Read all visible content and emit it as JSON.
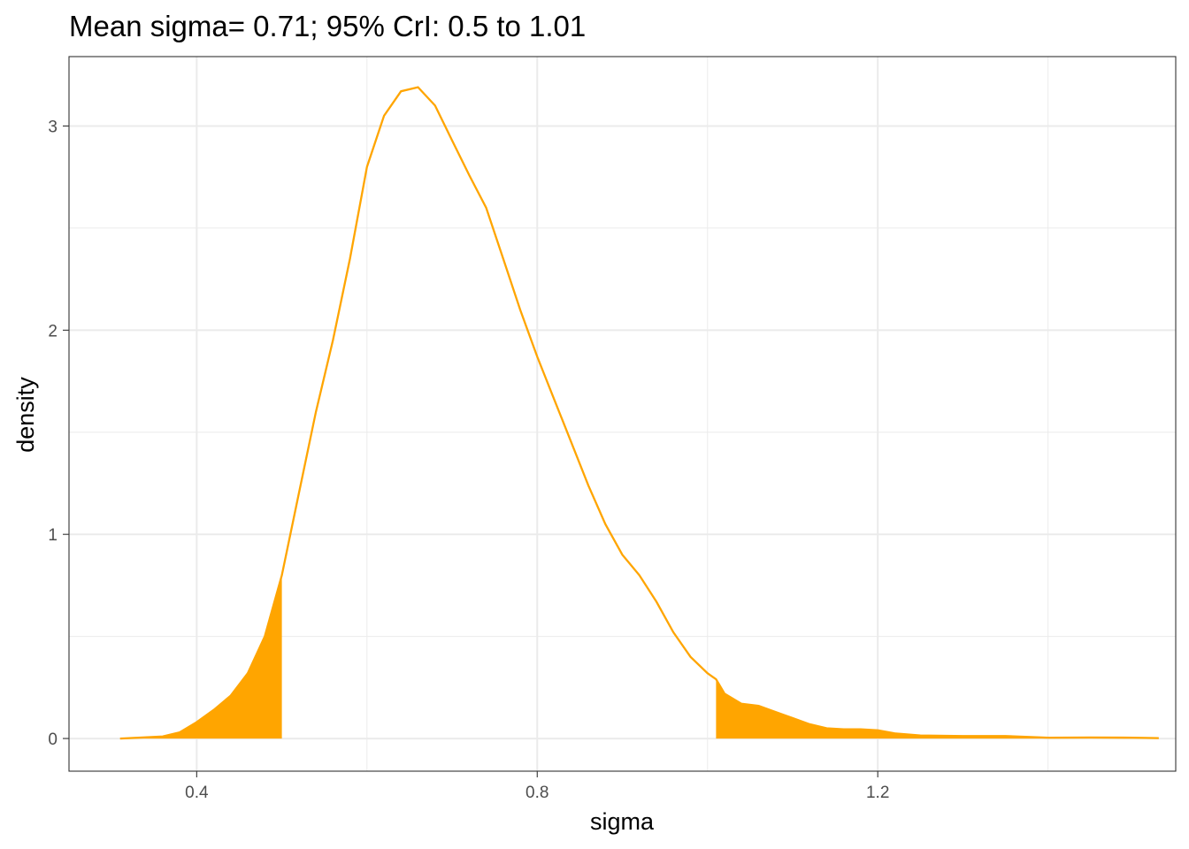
{
  "chart_data": {
    "type": "area",
    "title": "Mean sigma= 0.71; 95% CrI: 0.5 to 1.01",
    "xlabel": "sigma",
    "ylabel": "density",
    "xlim": [
      0.25,
      1.55
    ],
    "ylim": [
      -0.16,
      3.34
    ],
    "x_ticks": [
      0.4,
      0.8,
      1.2
    ],
    "x_tick_labels": [
      "0.4",
      "0.8",
      "1.2"
    ],
    "y_ticks": [
      0,
      1,
      2,
      3
    ],
    "y_tick_labels": [
      "0",
      "1",
      "2",
      "3"
    ],
    "grid": true,
    "interval_low": 0.5,
    "interval_high": 1.01,
    "colors": {
      "curve": "#FFA500",
      "tail_fill": "#FFA500",
      "grid": "#EBEBEB",
      "border": "#333333"
    },
    "series": [
      {
        "x": [
          0.31,
          0.36,
          0.38,
          0.4,
          0.42,
          0.44,
          0.46,
          0.48,
          0.5,
          0.52,
          0.54,
          0.56,
          0.58,
          0.6,
          0.62,
          0.64,
          0.66,
          0.68,
          0.7,
          0.72,
          0.74,
          0.76,
          0.78,
          0.8,
          0.82,
          0.84,
          0.86,
          0.88,
          0.9,
          0.92,
          0.94,
          0.96,
          0.98,
          1.0,
          1.01,
          1.02,
          1.04,
          1.06,
          1.08,
          1.1,
          1.12,
          1.14,
          1.16,
          1.18,
          1.2,
          1.22,
          1.25,
          1.3,
          1.35,
          1.4,
          1.45,
          1.5,
          1.53
        ],
        "y": [
          0.0,
          0.01,
          0.03,
          0.08,
          0.14,
          0.21,
          0.32,
          0.5,
          0.8,
          1.2,
          1.6,
          1.95,
          2.35,
          2.8,
          3.05,
          3.17,
          3.19,
          3.1,
          2.93,
          2.76,
          2.6,
          2.35,
          2.1,
          1.87,
          1.66,
          1.45,
          1.24,
          1.05,
          0.9,
          0.8,
          0.67,
          0.52,
          0.4,
          0.32,
          0.29,
          0.22,
          0.17,
          0.16,
          0.13,
          0.1,
          0.07,
          0.05,
          0.045,
          0.045,
          0.04,
          0.025,
          0.015,
          0.012,
          0.012,
          0.004,
          0.005,
          0.004,
          0.002
        ]
      }
    ]
  }
}
